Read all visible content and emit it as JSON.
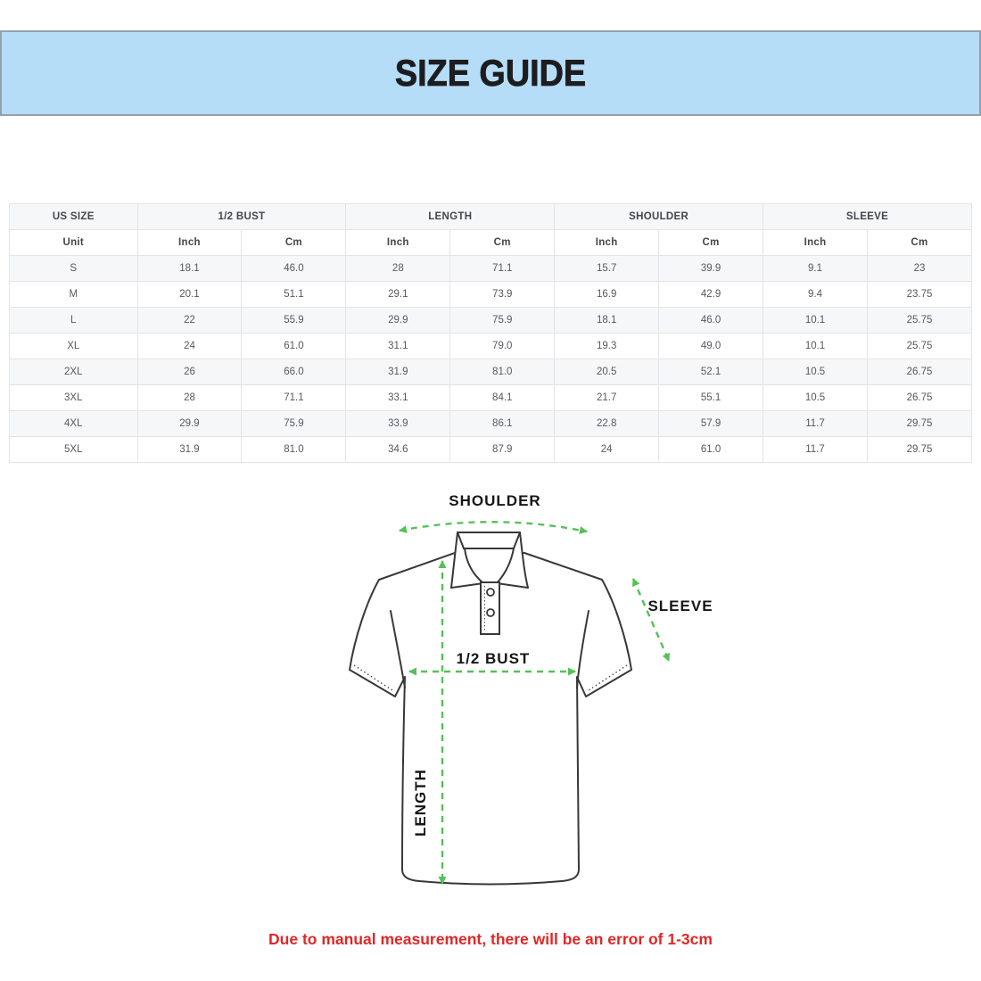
{
  "page": {
    "title": "SIZE GUIDE"
  },
  "colors": {
    "banner_bg": "#b6ddf8",
    "banner_border": "#93a1ac",
    "accent_green": "#55c158",
    "note_red": "#e02727",
    "table_stripe": "#f6f7f8",
    "table_border": "#e2e4e7",
    "header_text": "#43464c",
    "cell_text": "#55585e",
    "outline": "#383838"
  },
  "size_table": {
    "column_groups": [
      {
        "label": "US SIZE",
        "span": 1
      },
      {
        "label": "1/2 BUST",
        "span": 2
      },
      {
        "label": "LENGTH",
        "span": 2
      },
      {
        "label": "SHOULDER",
        "span": 2
      },
      {
        "label": "SLEEVE",
        "span": 2
      }
    ],
    "unit_row": [
      "Unit",
      "Inch",
      "Cm",
      "Inch",
      "Cm",
      "Inch",
      "Cm",
      "Inch",
      "Cm"
    ],
    "rows": [
      [
        "S",
        "18.1",
        "46.0",
        "28",
        "71.1",
        "15.7",
        "39.9",
        "9.1",
        "23"
      ],
      [
        "M",
        "20.1",
        "51.1",
        "29.1",
        "73.9",
        "16.9",
        "42.9",
        "9.4",
        "23.75"
      ],
      [
        "L",
        "22",
        "55.9",
        "29.9",
        "75.9",
        "18.1",
        "46.0",
        "10.1",
        "25.75"
      ],
      [
        "XL",
        "24",
        "61.0",
        "31.1",
        "79.0",
        "19.3",
        "49.0",
        "10.1",
        "25.75"
      ],
      [
        "2XL",
        "26",
        "66.0",
        "31.9",
        "81.0",
        "20.5",
        "52.1",
        "10.5",
        "26.75"
      ],
      [
        "3XL",
        "28",
        "71.1",
        "33.1",
        "84.1",
        "21.7",
        "55.1",
        "10.5",
        "26.75"
      ],
      [
        "4XL",
        "29.9",
        "75.9",
        "33.9",
        "86.1",
        "22.8",
        "57.9",
        "11.7",
        "29.75"
      ],
      [
        "5XL",
        "31.9",
        "81.0",
        "34.6",
        "87.9",
        "24",
        "61.0",
        "11.7",
        "29.75"
      ]
    ]
  },
  "diagram": {
    "labels": {
      "shoulder": "SHOULDER",
      "sleeve": "SLEEVE",
      "bust": "1/2 BUST",
      "length": "LENGTH"
    }
  },
  "note": {
    "text": "Due to manual measurement, there will be an error of 1-3cm"
  }
}
